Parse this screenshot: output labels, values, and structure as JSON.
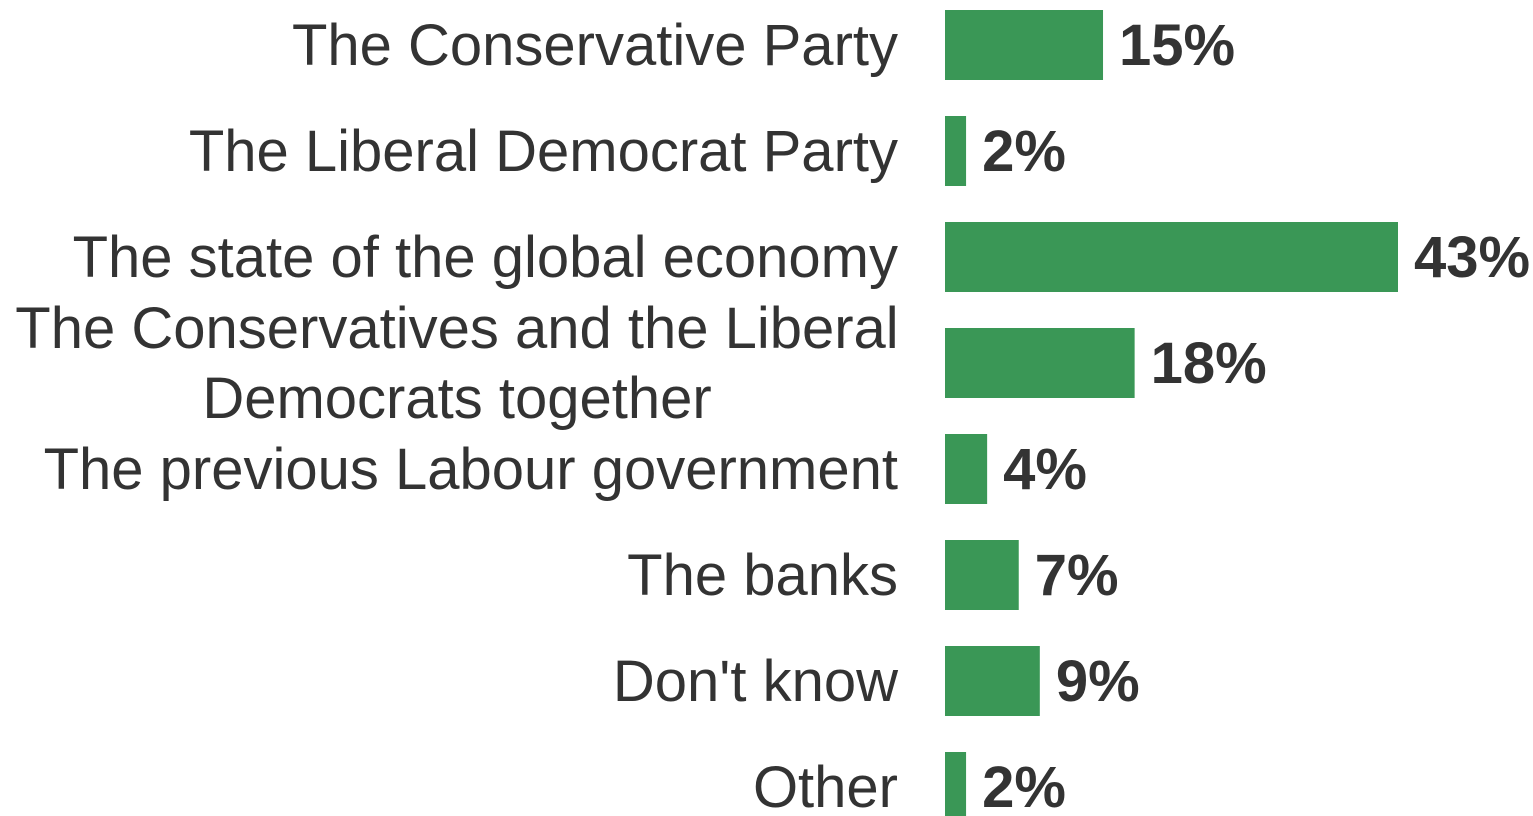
{
  "chart_data": {
    "type": "bar",
    "orientation": "horizontal",
    "categories": [
      "The Conservative Party",
      "The Liberal Democrat Party",
      "The state of the global economy",
      [
        "The Conservatives and the Liberal",
        "Democrats together"
      ],
      "The previous Labour government",
      "The banks",
      "Don't know",
      "Other"
    ],
    "values": [
      15,
      2,
      43,
      18,
      4,
      7,
      9,
      2
    ],
    "value_labels": [
      "15%",
      "2%",
      "43%",
      "18%",
      "4%",
      "7%",
      "9%",
      "2%"
    ],
    "title": "",
    "xlabel": "",
    "ylabel": "",
    "xlim": [
      0,
      43
    ],
    "grid": false,
    "legend": "none",
    "colors": {
      "bar": "#3a9756",
      "text": "#333333"
    }
  }
}
